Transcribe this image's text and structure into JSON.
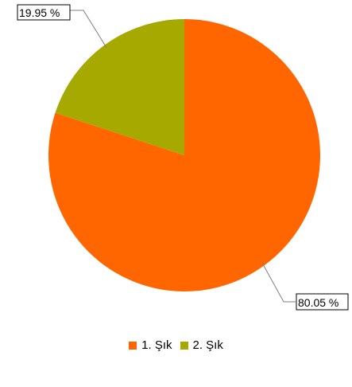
{
  "chart_data": {
    "type": "pie",
    "title": "",
    "start_angle_deg": 0,
    "direction": "clockwise",
    "legend_position": "bottom-center",
    "slices": [
      {
        "name": "1. Şık",
        "value": 80.05,
        "label": "80.05 %",
        "color": "#ff6600"
      },
      {
        "name": "2. Şık",
        "value": 19.95,
        "label": "19.95 %",
        "color": "#a5a900"
      }
    ]
  }
}
